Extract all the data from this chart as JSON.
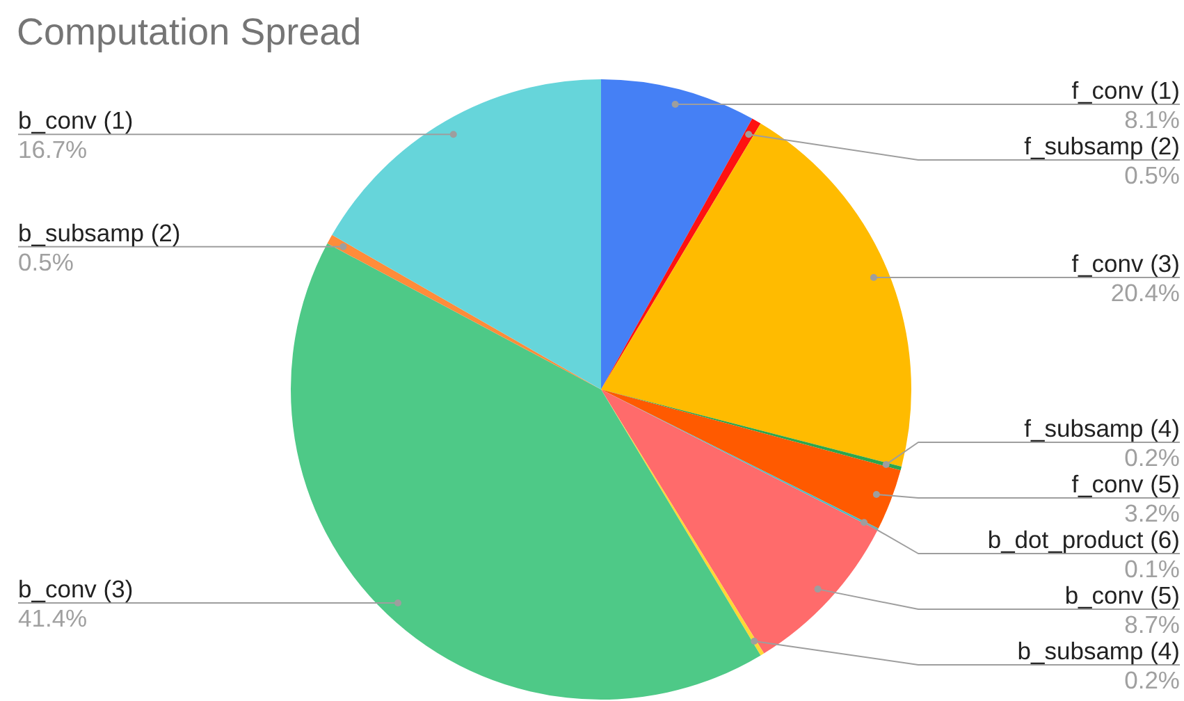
{
  "chart_data": {
    "type": "pie",
    "title": "Computation Spread",
    "categories": [
      "f_conv (1)",
      "f_subsamp (2)",
      "f_conv (3)",
      "f_subsamp (4)",
      "f_conv (5)",
      "b_dot_product (6)",
      "b_conv (5)",
      "b_subsamp (4)",
      "b_conv (3)",
      "b_subsamp (2)",
      "b_conv (1)"
    ],
    "values": [
      8.1,
      0.5,
      20.4,
      0.2,
      3.2,
      0.1,
      8.7,
      0.2,
      41.4,
      0.5,
      16.7
    ],
    "colors": [
      "#4580f5",
      "#ff1111",
      "#ffbb00",
      "#2ca64e",
      "#ff5a00",
      "#46bdc6",
      "#ff6b6b",
      "#fdd835",
      "#4ec987",
      "#ff8c3a",
      "#66d5da"
    ],
    "value_labels": [
      "8.1%",
      "0.5%",
      "20.4%",
      "0.2%",
      "3.2%",
      "0.1%",
      "8.7%",
      "0.2%",
      "41.4%",
      "0.5%",
      "16.7%"
    ]
  }
}
